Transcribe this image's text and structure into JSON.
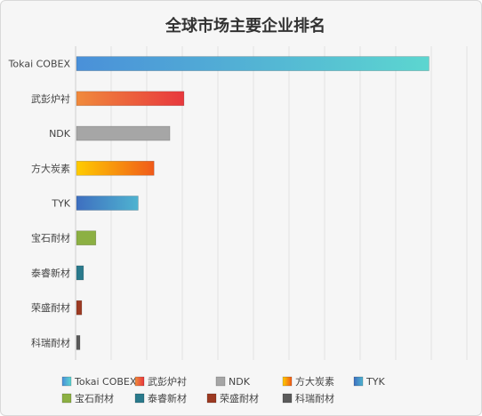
{
  "chart_data": {
    "type": "bar",
    "orientation": "horizontal",
    "title": "全球市场主要企业排名",
    "categories": [
      "Tokai COBEX",
      "武彭炉衬",
      "NDK",
      "方大炭素",
      "TYK",
      "宝石耐材",
      "泰睿新材",
      "荣盛耐材",
      "科瑞耐材"
    ],
    "values": [
      100,
      30.5,
      26.5,
      22,
      17.5,
      5.5,
      2,
      1.5,
      1
    ],
    "xlim": [
      0,
      111
    ],
    "grid": true,
    "xaxis_tick_labels_shown": false,
    "legend_position": "bottom",
    "series_colors": [
      [
        "#4a90d9",
        "#5cd6d0"
      ],
      [
        "#f08a3c",
        "#e8383d"
      ],
      [
        "#a6a6a6",
        "#a6a6a6"
      ],
      [
        "#ffcc00",
        "#f05a1a"
      ],
      [
        "#3e6fc0",
        "#4fb3d0"
      ],
      [
        "#8cb043",
        "#8cb043"
      ],
      [
        "#2a7a8c",
        "#2a7a8c"
      ],
      [
        "#9c3a22",
        "#9c3a22"
      ],
      [
        "#5a5a5a",
        "#5a5a5a"
      ]
    ]
  }
}
